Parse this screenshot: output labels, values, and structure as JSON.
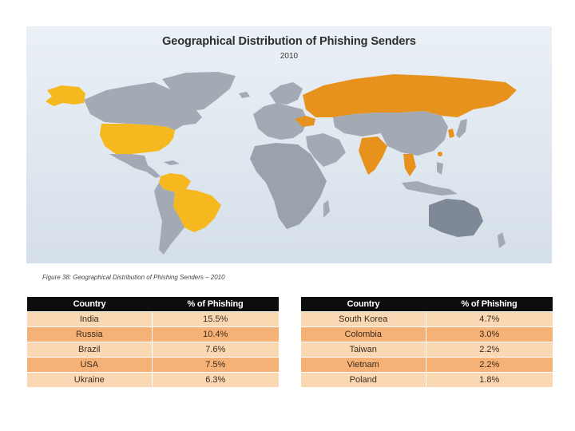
{
  "map": {
    "title": "Geographical Distribution of Phishing Senders",
    "subtitle": "2010",
    "colors": {
      "background": "#e4ebf2",
      "land": "#9aa2ad",
      "highlight_high": "#e8921e",
      "highlight_mid": "#f5b81e"
    }
  },
  "caption": "Figure 38: Geographical Distribution of Phishing Senders – 2010",
  "table_left": {
    "headers": [
      "Country",
      "% of Phishing"
    ],
    "rows": [
      {
        "country": "India",
        "pct": "15.5%"
      },
      {
        "country": "Russia",
        "pct": "10.4%"
      },
      {
        "country": "Brazil",
        "pct": "7.6%"
      },
      {
        "country": "USA",
        "pct": "7.5%"
      },
      {
        "country": "Ukraine",
        "pct": "6.3%"
      }
    ]
  },
  "table_right": {
    "headers": [
      "Country",
      "% of Phishing"
    ],
    "rows": [
      {
        "country": "South Korea",
        "pct": "4.7%"
      },
      {
        "country": "Colombia",
        "pct": "3.0%"
      },
      {
        "country": "Taiwan",
        "pct": "2.2%"
      },
      {
        "country": "Vietnam",
        "pct": "2.2%"
      },
      {
        "country": "Poland",
        "pct": "1.8%"
      }
    ]
  }
}
